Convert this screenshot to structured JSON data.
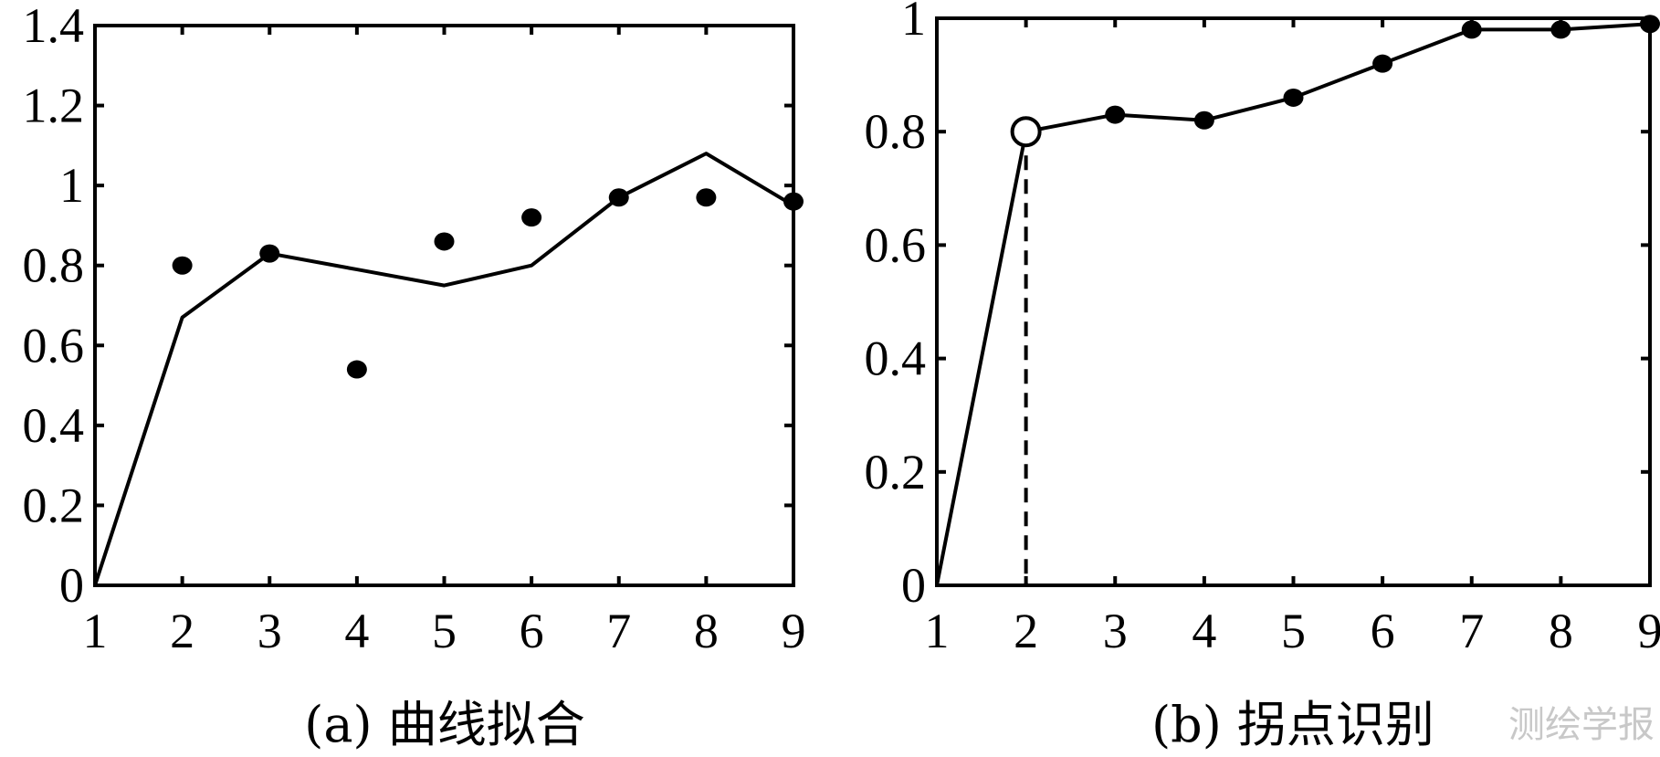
{
  "chart_data": [
    {
      "type": "line",
      "caption": "(a) 曲线拟合",
      "xlim": [
        1,
        9
      ],
      "ylim": [
        0,
        1.4
      ],
      "x_ticks": [
        "1",
        "2",
        "3",
        "4",
        "5",
        "6",
        "7",
        "8",
        "9"
      ],
      "y_ticks": [
        "0",
        "0.2",
        "0.4",
        "0.6",
        "0.8",
        "1",
        "1.2",
        "1.4"
      ],
      "grid": false,
      "series": [
        {
          "style": "line",
          "x": [
            1,
            2,
            3,
            4,
            5,
            6,
            7,
            8,
            9
          ],
          "y": [
            0,
            0.67,
            0.83,
            0.79,
            0.75,
            0.8,
            0.97,
            1.08,
            0.95
          ]
        },
        {
          "style": "markers",
          "x": [
            2,
            3,
            4,
            5,
            6,
            7,
            8,
            9
          ],
          "y": [
            0.8,
            0.83,
            0.54,
            0.86,
            0.92,
            0.97,
            0.97,
            0.96
          ]
        }
      ]
    },
    {
      "type": "line",
      "caption": "(b) 拐点识别",
      "xlim": [
        1,
        9
      ],
      "ylim": [
        0,
        1
      ],
      "x_ticks": [
        "1",
        "2",
        "3",
        "4",
        "5",
        "6",
        "7",
        "8",
        "9"
      ],
      "y_ticks": [
        "0",
        "0.2",
        "0.4",
        "0.6",
        "0.8",
        "1"
      ],
      "grid": false,
      "series": [
        {
          "style": "line-markers",
          "x": [
            1,
            2,
            3,
            4,
            5,
            6,
            7,
            8,
            9
          ],
          "y": [
            0,
            0.8,
            0.83,
            0.82,
            0.86,
            0.92,
            0.98,
            0.98,
            0.99
          ]
        }
      ],
      "inflection_point": {
        "x": 2,
        "y": 0.8
      }
    }
  ],
  "watermark": "测绘学报"
}
